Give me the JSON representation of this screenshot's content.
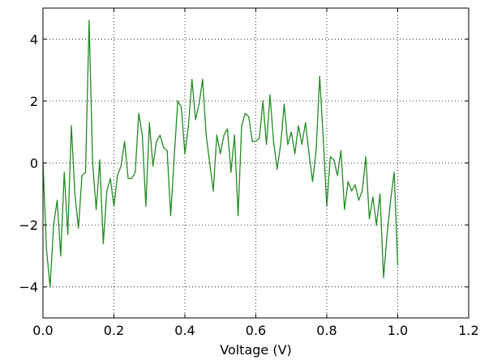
{
  "chart_data": {
    "type": "line",
    "title": "",
    "xlabel": "Voltage (V)",
    "ylabel": "",
    "xlim": [
      0.0,
      1.2
    ],
    "ylim": [
      -5,
      5
    ],
    "grid": true,
    "grid_style": "dotted",
    "x_ticks": [
      0.0,
      0.2,
      0.4,
      0.6,
      0.8,
      1.0,
      1.2
    ],
    "x_tick_labels": [
      "0.0",
      "0.2",
      "0.4",
      "0.6",
      "0.8",
      "1.0",
      "1.2"
    ],
    "y_ticks": [
      -4,
      -2,
      0,
      2,
      4
    ],
    "y_tick_labels": [
      "−4",
      "−2",
      "0",
      "2",
      "4"
    ],
    "series": [
      {
        "color": "#228b22",
        "x": [
          0.0,
          0.01,
          0.02,
          0.03,
          0.04,
          0.05,
          0.06,
          0.07,
          0.08,
          0.09,
          0.1,
          0.11,
          0.12,
          0.13,
          0.14,
          0.15,
          0.16,
          0.17,
          0.18,
          0.19,
          0.2,
          0.21,
          0.22,
          0.23,
          0.24,
          0.25,
          0.26,
          0.27,
          0.28,
          0.29,
          0.3,
          0.31,
          0.32,
          0.33,
          0.34,
          0.35,
          0.36,
          0.37,
          0.38,
          0.39,
          0.4,
          0.41,
          0.42,
          0.43,
          0.44,
          0.45,
          0.46,
          0.47,
          0.48,
          0.49,
          0.5,
          0.51,
          0.52,
          0.53,
          0.54,
          0.55,
          0.56,
          0.57,
          0.58,
          0.59,
          0.6,
          0.61,
          0.62,
          0.63,
          0.64,
          0.65,
          0.66,
          0.67,
          0.68,
          0.69,
          0.7,
          0.71,
          0.72,
          0.73,
          0.74,
          0.75,
          0.76,
          0.77,
          0.78,
          0.79,
          0.8,
          0.81,
          0.82,
          0.83,
          0.84,
          0.85,
          0.86,
          0.87,
          0.88,
          0.89,
          0.9,
          0.91,
          0.92,
          0.93,
          0.94,
          0.95,
          0.96,
          0.97,
          0.98,
          0.99,
          1.0
        ],
        "y": [
          0.0,
          -2.8,
          -4.0,
          -2.0,
          -1.2,
          -3.0,
          -0.3,
          -2.3,
          1.2,
          -1.0,
          -2.1,
          -0.4,
          -0.3,
          4.6,
          0.0,
          -1.5,
          0.1,
          -2.6,
          -0.9,
          -0.5,
          -1.4,
          -0.4,
          -0.1,
          0.7,
          -0.5,
          -0.5,
          -0.3,
          1.6,
          0.9,
          -1.4,
          1.3,
          -0.1,
          0.7,
          0.9,
          0.5,
          0.4,
          -1.7,
          0.2,
          2.0,
          1.8,
          0.3,
          1.2,
          2.7,
          1.4,
          1.9,
          2.7,
          0.9,
          0.0,
          -0.9,
          0.9,
          0.3,
          0.9,
          1.1,
          -0.3,
          0.9,
          -1.7,
          1.2,
          1.6,
          1.5,
          0.7,
          0.7,
          0.8,
          2.0,
          0.6,
          2.2,
          0.7,
          -0.2,
          0.6,
          1.9,
          0.6,
          1.0,
          0.3,
          1.2,
          0.6,
          1.3,
          0.3,
          -0.6,
          0.4,
          2.8,
          0.8,
          -1.4,
          0.2,
          0.1,
          -0.4,
          0.4,
          -1.5,
          -0.6,
          -0.9,
          -0.7,
          -1.2,
          -0.9,
          0.2,
          -1.8,
          -1.1,
          -2.0,
          -1.0,
          -3.7,
          -2.3,
          -1.2,
          -0.3,
          -3.3
        ]
      }
    ]
  }
}
